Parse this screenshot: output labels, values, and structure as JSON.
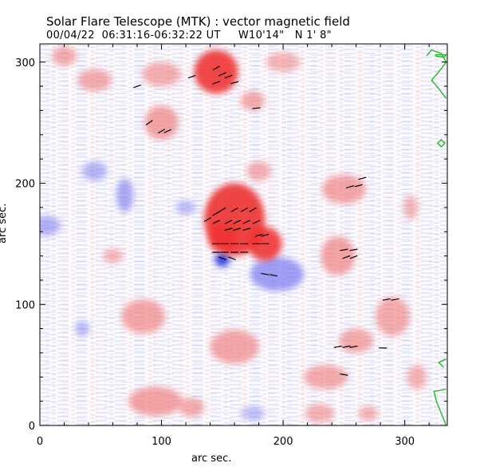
{
  "chart_data": {
    "type": "heatmap",
    "title": "Solar Flare Telescope (MTK) : vector magnetic field",
    "subtitle": "00/04/22  06:31:16-06:32:22 UT     W10'14\"   N 1' 8\"",
    "xlabel": "arc sec.",
    "ylabel": "arc sec.",
    "xlim": [
      0,
      335
    ],
    "ylim": [
      0,
      315
    ],
    "x_ticks": [
      0,
      100,
      200,
      300
    ],
    "y_ticks": [
      0,
      100,
      200,
      300
    ],
    "colors": {
      "positive_field": "#f08080",
      "negative_field": "#8080f0",
      "strong_positive": "#ee3333",
      "strong_negative": "#2233dd",
      "transverse_vectors": "#000000",
      "contour": "#22bb22"
    },
    "positive_regions": [
      {
        "x": 20,
        "y": 305,
        "rx": 10,
        "ry": 8,
        "strength": 0.5
      },
      {
        "x": 45,
        "y": 285,
        "rx": 14,
        "ry": 9,
        "strength": 0.5
      },
      {
        "x": 100,
        "y": 290,
        "rx": 16,
        "ry": 10,
        "strength": 0.45
      },
      {
        "x": 145,
        "y": 292,
        "rx": 18,
        "ry": 18,
        "strength": 0.9
      },
      {
        "x": 175,
        "y": 268,
        "rx": 10,
        "ry": 8,
        "strength": 0.5
      },
      {
        "x": 100,
        "y": 250,
        "rx": 14,
        "ry": 14,
        "strength": 0.6
      },
      {
        "x": 200,
        "y": 300,
        "rx": 14,
        "ry": 8,
        "strength": 0.35
      },
      {
        "x": 160,
        "y": 170,
        "rx": 25,
        "ry": 30,
        "strength": 0.95
      },
      {
        "x": 185,
        "y": 150,
        "rx": 14,
        "ry": 14,
        "strength": 0.9
      },
      {
        "x": 150,
        "y": 155,
        "rx": 12,
        "ry": 12,
        "strength": 0.85
      },
      {
        "x": 180,
        "y": 210,
        "rx": 10,
        "ry": 8,
        "strength": 0.45
      },
      {
        "x": 250,
        "y": 195,
        "rx": 18,
        "ry": 12,
        "strength": 0.55
      },
      {
        "x": 245,
        "y": 140,
        "rx": 14,
        "ry": 16,
        "strength": 0.6
      },
      {
        "x": 290,
        "y": 90,
        "rx": 14,
        "ry": 16,
        "strength": 0.5
      },
      {
        "x": 260,
        "y": 70,
        "rx": 14,
        "ry": 10,
        "strength": 0.5
      },
      {
        "x": 235,
        "y": 40,
        "rx": 18,
        "ry": 10,
        "strength": 0.5
      },
      {
        "x": 310,
        "y": 40,
        "rx": 8,
        "ry": 10,
        "strength": 0.4
      },
      {
        "x": 85,
        "y": 90,
        "rx": 18,
        "ry": 14,
        "strength": 0.55
      },
      {
        "x": 160,
        "y": 65,
        "rx": 20,
        "ry": 14,
        "strength": 0.55
      },
      {
        "x": 95,
        "y": 20,
        "rx": 22,
        "ry": 12,
        "strength": 0.6
      },
      {
        "x": 125,
        "y": 15,
        "rx": 10,
        "ry": 8,
        "strength": 0.5
      },
      {
        "x": 230,
        "y": 10,
        "rx": 12,
        "ry": 8,
        "strength": 0.4
      },
      {
        "x": 270,
        "y": 10,
        "rx": 8,
        "ry": 6,
        "strength": 0.4
      },
      {
        "x": 60,
        "y": 140,
        "rx": 8,
        "ry": 6,
        "strength": 0.35
      },
      {
        "x": 305,
        "y": 180,
        "rx": 6,
        "ry": 10,
        "strength": 0.35
      }
    ],
    "negative_regions": [
      {
        "x": 195,
        "y": 125,
        "rx": 22,
        "ry": 14,
        "strength": 0.75
      },
      {
        "x": 150,
        "y": 137,
        "rx": 6,
        "ry": 6,
        "strength": 1.0
      },
      {
        "x": 70,
        "y": 190,
        "rx": 7,
        "ry": 14,
        "strength": 0.6
      },
      {
        "x": 45,
        "y": 210,
        "rx": 10,
        "ry": 8,
        "strength": 0.45
      },
      {
        "x": 5,
        "y": 165,
        "rx": 12,
        "ry": 8,
        "strength": 0.5
      },
      {
        "x": 120,
        "y": 180,
        "rx": 8,
        "ry": 6,
        "strength": 0.35
      },
      {
        "x": 35,
        "y": 80,
        "rx": 6,
        "ry": 6,
        "strength": 0.4
      },
      {
        "x": 175,
        "y": 10,
        "rx": 10,
        "ry": 6,
        "strength": 0.3
      }
    ],
    "vectors": [
      {
        "x": 80,
        "y": 280,
        "angle": 20
      },
      {
        "x": 90,
        "y": 250,
        "angle": 35
      },
      {
        "x": 100,
        "y": 243,
        "angle": 30
      },
      {
        "x": 105,
        "y": 243,
        "angle": 25
      },
      {
        "x": 125,
        "y": 288,
        "angle": 20
      },
      {
        "x": 145,
        "y": 295,
        "angle": 30
      },
      {
        "x": 150,
        "y": 290,
        "angle": 25
      },
      {
        "x": 155,
        "y": 288,
        "angle": 20
      },
      {
        "x": 145,
        "y": 283,
        "angle": 20
      },
      {
        "x": 160,
        "y": 283,
        "angle": 15
      },
      {
        "x": 178,
        "y": 262,
        "angle": 5
      },
      {
        "x": 138,
        "y": 170,
        "angle": 30
      },
      {
        "x": 145,
        "y": 175,
        "angle": 30
      },
      {
        "x": 150,
        "y": 178,
        "angle": 30
      },
      {
        "x": 160,
        "y": 178,
        "angle": 30
      },
      {
        "x": 168,
        "y": 178,
        "angle": 30
      },
      {
        "x": 175,
        "y": 178,
        "angle": 30
      },
      {
        "x": 145,
        "y": 168,
        "angle": 25
      },
      {
        "x": 155,
        "y": 168,
        "angle": 25
      },
      {
        "x": 162,
        "y": 168,
        "angle": 25
      },
      {
        "x": 170,
        "y": 168,
        "angle": 25
      },
      {
        "x": 178,
        "y": 168,
        "angle": 25
      },
      {
        "x": 155,
        "y": 162,
        "angle": 15
      },
      {
        "x": 162,
        "y": 162,
        "angle": 15
      },
      {
        "x": 170,
        "y": 162,
        "angle": 15
      },
      {
        "x": 180,
        "y": 157,
        "angle": 15
      },
      {
        "x": 185,
        "y": 157,
        "angle": 15
      },
      {
        "x": 145,
        "y": 150,
        "angle": 0
      },
      {
        "x": 152,
        "y": 150,
        "angle": 0
      },
      {
        "x": 160,
        "y": 150,
        "angle": 0
      },
      {
        "x": 168,
        "y": 150,
        "angle": 0
      },
      {
        "x": 178,
        "y": 150,
        "angle": 0
      },
      {
        "x": 185,
        "y": 150,
        "angle": 0
      },
      {
        "x": 145,
        "y": 143,
        "angle": 0
      },
      {
        "x": 152,
        "y": 143,
        "angle": 0
      },
      {
        "x": 160,
        "y": 143,
        "angle": 0
      },
      {
        "x": 168,
        "y": 143,
        "angle": 0
      },
      {
        "x": 150,
        "y": 138,
        "angle": -20
      },
      {
        "x": 158,
        "y": 138,
        "angle": -20
      },
      {
        "x": 185,
        "y": 125,
        "angle": -10
      },
      {
        "x": 192,
        "y": 124,
        "angle": -10
      },
      {
        "x": 255,
        "y": 197,
        "angle": 15
      },
      {
        "x": 262,
        "y": 198,
        "angle": 15
      },
      {
        "x": 265,
        "y": 204,
        "angle": 15
      },
      {
        "x": 250,
        "y": 145,
        "angle": 10
      },
      {
        "x": 258,
        "y": 145,
        "angle": 10
      },
      {
        "x": 252,
        "y": 139,
        "angle": 20
      },
      {
        "x": 258,
        "y": 139,
        "angle": 20
      },
      {
        "x": 285,
        "y": 104,
        "angle": 10
      },
      {
        "x": 292,
        "y": 104,
        "angle": 10
      },
      {
        "x": 245,
        "y": 65,
        "angle": 10
      },
      {
        "x": 252,
        "y": 65,
        "angle": 10
      },
      {
        "x": 258,
        "y": 65,
        "angle": 10
      },
      {
        "x": 282,
        "y": 64,
        "angle": 0
      },
      {
        "x": 250,
        "y": 42,
        "angle": -10
      }
    ],
    "contours": [
      {
        "points": [
          [
            318,
            305
          ],
          [
            322,
            310
          ],
          [
            330,
            307
          ],
          [
            334,
            300
          ],
          [
            328,
            292
          ],
          [
            322,
            285
          ],
          [
            328,
            278
          ],
          [
            334,
            270
          ]
        ]
      },
      {
        "points": [
          [
            325,
            305
          ],
          [
            332,
            304
          ],
          [
            334,
            306
          ],
          [
            325,
            306
          ]
        ]
      },
      {
        "points": [
          [
            330,
            230
          ],
          [
            333,
            233
          ],
          [
            330,
            236
          ],
          [
            327,
            233
          ],
          [
            330,
            230
          ]
        ]
      },
      {
        "points": [
          [
            334,
            55
          ],
          [
            328,
            52
          ],
          [
            332,
            48
          ]
        ]
      },
      {
        "points": [
          [
            334,
            30
          ],
          [
            324,
            28
          ],
          [
            326,
            20
          ],
          [
            330,
            10
          ],
          [
            334,
            0
          ]
        ]
      }
    ]
  }
}
